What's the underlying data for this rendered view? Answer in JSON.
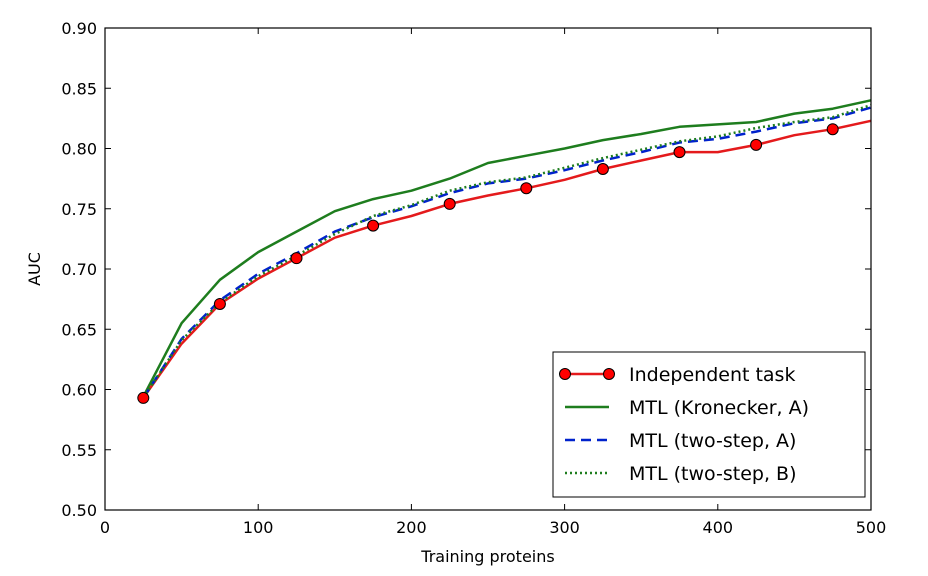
{
  "chart_data": {
    "type": "line",
    "title": "",
    "xlabel": "Training proteins",
    "ylabel": "AUC",
    "xlim": [
      0,
      500
    ],
    "ylim": [
      0.5,
      0.9
    ],
    "xticks": [
      "0",
      "100",
      "200",
      "300",
      "400",
      "500"
    ],
    "yticks": [
      "0.50",
      "0.55",
      "0.60",
      "0.65",
      "0.70",
      "0.75",
      "0.80",
      "0.85",
      "0.90"
    ],
    "grid": false,
    "legend_position": "bottom-right",
    "x": [
      25,
      50,
      75,
      100,
      125,
      150,
      175,
      200,
      225,
      250,
      275,
      300,
      325,
      350,
      375,
      400,
      425,
      450,
      475,
      500
    ],
    "series": [
      {
        "name": "Independent task",
        "color": "#ff0000",
        "line_color": "#e41a1c",
        "style": "solid-markers",
        "values": [
          0.593,
          0.638,
          0.671,
          0.692,
          0.709,
          0.726,
          0.736,
          0.744,
          0.754,
          0.761,
          0.767,
          0.774,
          0.783,
          0.79,
          0.797,
          0.797,
          0.803,
          0.811,
          0.816,
          0.823
        ]
      },
      {
        "name": "MTL (Kronecker, A)",
        "color": "#1e7d1e",
        "style": "solid",
        "values": [
          0.594,
          0.655,
          0.691,
          0.714,
          0.731,
          0.748,
          0.758,
          0.765,
          0.775,
          0.788,
          0.794,
          0.8,
          0.807,
          0.812,
          0.818,
          0.82,
          0.822,
          0.829,
          0.833,
          0.84
        ]
      },
      {
        "name": "MTL (two-step, A)",
        "color": "#0022cc",
        "style": "dashed",
        "values": [
          0.593,
          0.642,
          0.674,
          0.696,
          0.713,
          0.731,
          0.743,
          0.752,
          0.763,
          0.771,
          0.775,
          0.782,
          0.79,
          0.797,
          0.805,
          0.808,
          0.814,
          0.821,
          0.825,
          0.834
        ]
      },
      {
        "name": "MTL (two-step, B)",
        "color": "#1e7d1e",
        "style": "dotted",
        "values": [
          0.593,
          0.641,
          0.672,
          0.694,
          0.711,
          0.729,
          0.744,
          0.753,
          0.765,
          0.772,
          0.776,
          0.784,
          0.792,
          0.799,
          0.806,
          0.81,
          0.817,
          0.822,
          0.826,
          0.836
        ]
      }
    ]
  }
}
